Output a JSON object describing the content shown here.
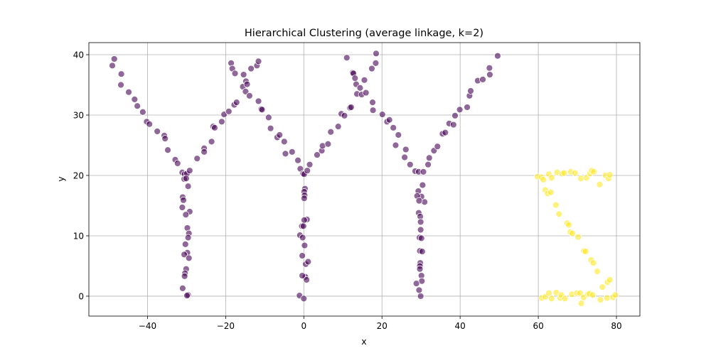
{
  "chart_data": {
    "type": "scatter",
    "title": "Hierarchical Clustering (average linkage, k=2)",
    "xlabel": "x",
    "ylabel": "y",
    "xlim": [
      -55,
      86
    ],
    "ylim": [
      -3.3,
      42
    ],
    "xticks": [
      -40,
      -20,
      0,
      20,
      40,
      60,
      80
    ],
    "yticks": [
      0,
      10,
      20,
      30,
      40
    ],
    "xtick_labels": [
      "−40",
      "−20",
      "0",
      "20",
      "40",
      "60",
      "80"
    ],
    "ytick_labels": [
      "0",
      "10",
      "20",
      "30",
      "40"
    ],
    "grid": true,
    "cluster_colors": [
      "#440154",
      "#fde725"
    ],
    "series": [
      {
        "points": [
          [
            -49,
            38.2
          ],
          [
            -48.5,
            39.3
          ],
          [
            -46.7,
            36.8
          ],
          [
            -46.8,
            35
          ],
          [
            -44.8,
            33.8
          ],
          [
            -43.3,
            32.6
          ],
          [
            -42.6,
            31.5
          ],
          [
            -41.2,
            30.5
          ],
          [
            -40.2,
            28.9
          ],
          [
            -39.5,
            28.5
          ],
          [
            -37.5,
            27.3
          ],
          [
            -35.7,
            26.6
          ],
          [
            -35.5,
            26.1
          ],
          [
            -34.8,
            24.2
          ],
          [
            -32.9,
            22.6
          ],
          [
            -32.3,
            22
          ],
          [
            -31.1,
            20.5
          ],
          [
            -30.5,
            20.2
          ],
          [
            -29.9,
            20.3
          ],
          [
            -30.6,
            19.4
          ],
          [
            -30.1,
            19.5
          ],
          [
            -29.2,
            20.8
          ],
          [
            -29.6,
            18.2
          ],
          [
            -31,
            16.4
          ],
          [
            -30.8,
            15.9
          ],
          [
            -29.2,
            14
          ],
          [
            -31.1,
            14.7
          ],
          [
            -30.2,
            13.5
          ],
          [
            -29.8,
            11.3
          ],
          [
            -29.4,
            10.4
          ],
          [
            -29.6,
            9.7
          ],
          [
            -30.3,
            8.6
          ],
          [
            -29.8,
            7.2
          ],
          [
            -30.6,
            6.9
          ],
          [
            -29.4,
            6.3
          ],
          [
            -30.1,
            4.5
          ],
          [
            -30.4,
            3.8
          ],
          [
            -30.5,
            3.3
          ],
          [
            -31,
            1.3
          ],
          [
            -29.6,
            0.2
          ],
          [
            -29.9,
            0.1
          ],
          [
            -27.3,
            22.8
          ],
          [
            -25.5,
            24.5
          ],
          [
            -25.5,
            23.9
          ],
          [
            -23.6,
            25.6
          ],
          [
            -23.2,
            28.1
          ],
          [
            -22.8,
            27.9
          ],
          [
            -21,
            28.9
          ],
          [
            -20.4,
            30.1
          ],
          [
            -19.2,
            30.6
          ],
          [
            -18.6,
            38.6
          ],
          [
            -18.3,
            37.7
          ],
          [
            -17.6,
            36.9
          ],
          [
            -17.8,
            31.7
          ],
          [
            -17.2,
            32.1
          ],
          [
            -15.6,
            34.7
          ],
          [
            -15.4,
            36.7
          ],
          [
            -14.8,
            35.6
          ],
          [
            -14.9,
            33.9
          ],
          [
            -14.5,
            35.1
          ],
          [
            -13.9,
            33.2
          ],
          [
            -13.5,
            37.7
          ],
          [
            -12,
            38.2
          ],
          [
            -11.6,
            38.9
          ],
          [
            -11.6,
            32.3
          ],
          [
            -10.9,
            31
          ],
          [
            -10.7,
            30.9
          ],
          [
            -9,
            29.6
          ],
          [
            -8.5,
            27.8
          ],
          [
            -6.8,
            26.3
          ],
          [
            -6.2,
            26.7
          ],
          [
            -5,
            25.6
          ],
          [
            -4.7,
            23.6
          ],
          [
            -3,
            23.9
          ],
          [
            -1.5,
            22.5
          ],
          [
            -0.9,
            21.1
          ],
          [
            -0.2,
            20.3
          ],
          [
            0.1,
            20.2
          ],
          [
            0.9,
            20.8
          ],
          [
            1.5,
            21.8
          ],
          [
            0.3,
            17.8
          ],
          [
            0.1,
            17.3
          ],
          [
            0.2,
            16.7
          ],
          [
            0.1,
            16.2
          ],
          [
            0.8,
            12.7
          ],
          [
            0.1,
            12.6
          ],
          [
            -0.5,
            11.6
          ],
          [
            -0.1,
            11.6
          ],
          [
            -1,
            10.1
          ],
          [
            -0.3,
            9.7
          ],
          [
            0.2,
            8.4
          ],
          [
            -0.4,
            6.7
          ],
          [
            0.5,
            5.3
          ],
          [
            1.1,
            5.7
          ],
          [
            0.4,
            3.2
          ],
          [
            0.7,
            2.7
          ],
          [
            -0.4,
            3.4
          ],
          [
            -1.1,
            0.1
          ],
          [
            0,
            -0.4
          ],
          [
            3.4,
            23.4
          ],
          [
            4.6,
            24.1
          ],
          [
            4.8,
            24.9
          ],
          [
            6.2,
            25.2
          ],
          [
            6.9,
            27.2
          ],
          [
            8.8,
            28.1
          ],
          [
            9.6,
            30.2
          ],
          [
            10.4,
            29.9
          ],
          [
            11,
            39.5
          ],
          [
            11.8,
            31.2
          ],
          [
            12.1,
            31.3
          ],
          [
            12.5,
            37
          ],
          [
            12.7,
            36.9
          ],
          [
            13.1,
            36.1
          ],
          [
            13.4,
            35.1
          ],
          [
            14.4,
            34.5
          ],
          [
            13.6,
            33.5
          ],
          [
            14.8,
            33.4
          ],
          [
            15.5,
            35.8
          ],
          [
            15.9,
            33.7
          ],
          [
            17.4,
            37.7
          ],
          [
            17.6,
            32.1
          ],
          [
            17.7,
            30.8
          ],
          [
            18.4,
            38.6
          ],
          [
            18.5,
            40.2
          ],
          [
            20.1,
            30.1
          ],
          [
            21.3,
            28.9
          ],
          [
            21.9,
            29.2
          ],
          [
            22.9,
            27.9
          ],
          [
            23.5,
            25
          ],
          [
            24.2,
            26.7
          ],
          [
            26.1,
            24.3
          ],
          [
            25.8,
            23
          ],
          [
            27.2,
            21.8
          ],
          [
            28.5,
            20.7
          ],
          [
            29.4,
            20.6
          ],
          [
            30.6,
            20.6
          ],
          [
            30.9,
            15.6
          ],
          [
            30.4,
            18.4
          ],
          [
            29.3,
            17.4
          ],
          [
            30.1,
            16.5
          ],
          [
            29,
            16.6
          ],
          [
            29.5,
            15.8
          ],
          [
            29.4,
            13.8
          ],
          [
            29.8,
            13.2
          ],
          [
            29.9,
            12.3
          ],
          [
            29.9,
            11
          ],
          [
            29.6,
            9.7
          ],
          [
            30.1,
            9.6
          ],
          [
            29.7,
            7.5
          ],
          [
            30.3,
            7.4
          ],
          [
            29.8,
            5.5
          ],
          [
            29.7,
            5
          ],
          [
            29.7,
            4.5
          ],
          [
            30.1,
            3.4
          ],
          [
            30.2,
            2.5
          ],
          [
            28.8,
            2.1
          ],
          [
            29.5,
            1
          ],
          [
            29.9,
            0
          ],
          [
            32.1,
            22.9
          ],
          [
            31.8,
            21.8
          ],
          [
            33.3,
            24.1
          ],
          [
            34.2,
            24.8
          ],
          [
            35.5,
            26.9
          ],
          [
            36.2,
            27.1
          ],
          [
            37.2,
            28.6
          ],
          [
            38.3,
            28.4
          ],
          [
            38.7,
            29.9
          ],
          [
            39.9,
            30.9
          ],
          [
            41.8,
            31.3
          ],
          [
            42.4,
            33.2
          ],
          [
            42.7,
            34
          ],
          [
            44.5,
            35.7
          ],
          [
            45.8,
            35.9
          ],
          [
            47.6,
            36.7
          ],
          [
            47.5,
            37.8
          ],
          [
            49.6,
            39.8
          ]
        ]
      },
      {
        "points": [
          [
            59.8,
            19.8
          ],
          [
            60.8,
            19.7
          ],
          [
            61.3,
            19.3
          ],
          [
            62.7,
            20.2
          ],
          [
            63.4,
            19.6
          ],
          [
            64.8,
            20.5
          ],
          [
            66.1,
            20.3
          ],
          [
            66.6,
            20.4
          ],
          [
            68.3,
            20.6
          ],
          [
            69.4,
            20.4
          ],
          [
            70.9,
            19.5
          ],
          [
            72.3,
            19.6
          ],
          [
            73.2,
            20.3
          ],
          [
            73.7,
            20.8
          ],
          [
            74.2,
            20.6
          ],
          [
            75.7,
            18.5
          ],
          [
            77.2,
            20
          ],
          [
            78,
            19.5
          ],
          [
            78.3,
            20.1
          ],
          [
            61.8,
            17.6
          ],
          [
            62.4,
            17
          ],
          [
            63.2,
            17.2
          ],
          [
            64.5,
            15.1
          ],
          [
            65.3,
            13.6
          ],
          [
            67.4,
            12.1
          ],
          [
            67.8,
            11.8
          ],
          [
            68.2,
            10.6
          ],
          [
            68.7,
            10.4
          ],
          [
            70.2,
            9.8
          ],
          [
            71.7,
            7.5
          ],
          [
            72.1,
            7.4
          ],
          [
            73.5,
            6
          ],
          [
            74.1,
            5.5
          ],
          [
            75.1,
            4.1
          ],
          [
            76.4,
            1.5
          ],
          [
            77.7,
            2.3
          ],
          [
            78.3,
            2.7
          ],
          [
            60.9,
            -0.3
          ],
          [
            61.8,
            -0.1
          ],
          [
            62.7,
            0.5
          ],
          [
            63.4,
            -0.4
          ],
          [
            64.6,
            0.6
          ],
          [
            65.6,
            -0.3
          ],
          [
            65.9,
            0.2
          ],
          [
            66.8,
            -0.4
          ],
          [
            68.6,
            0.3
          ],
          [
            69.9,
            0.5
          ],
          [
            70.7,
            0.5
          ],
          [
            71,
            -1.2
          ],
          [
            71.6,
            -0.2
          ],
          [
            72.7,
            0.3
          ],
          [
            73.1,
            0.4
          ],
          [
            73.9,
            0.2
          ],
          [
            75.9,
            -0.6
          ],
          [
            77.6,
            -0.3
          ],
          [
            79.1,
            -0.2
          ],
          [
            79.7,
            0.2
          ]
        ]
      }
    ]
  }
}
